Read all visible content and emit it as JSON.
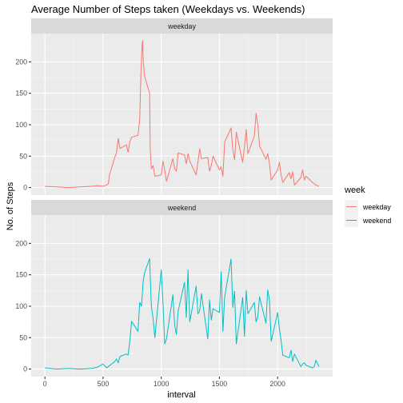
{
  "chart_data": {
    "type": "line",
    "title": "Average Number of Steps taken (Weekdays vs. Weekends)",
    "xlabel": "interval",
    "ylabel": "No. of Steps",
    "xlim": [
      -118,
      2473
    ],
    "ylim": [
      -12,
      245
    ],
    "x_ticks": [
      0,
      500,
      1000,
      1500,
      2000
    ],
    "y_ticks": [
      0,
      50,
      100,
      150,
      200
    ],
    "grid": true,
    "legend": {
      "title": "week",
      "placement": "right",
      "entries": [
        "weekday",
        "weekend"
      ]
    },
    "facets": [
      "weekday",
      "weekend"
    ],
    "series": [
      {
        "name": "weekday",
        "color": "#F8766D",
        "x": [
          0,
          100,
          200,
          300,
          400,
          450,
          500,
          530,
          545,
          555,
          600,
          615,
          630,
          645,
          700,
          715,
          730,
          745,
          800,
          815,
          825,
          830,
          835,
          840,
          845,
          850,
          855,
          900,
          905,
          915,
          930,
          945,
          1000,
          1015,
          1030,
          1045,
          1100,
          1115,
          1130,
          1145,
          1200,
          1215,
          1230,
          1245,
          1300,
          1315,
          1330,
          1345,
          1400,
          1415,
          1430,
          1445,
          1500,
          1515,
          1530,
          1545,
          1600,
          1615,
          1630,
          1645,
          1700,
          1715,
          1730,
          1745,
          1800,
          1815,
          1830,
          1845,
          1900,
          1915,
          1930,
          1945,
          2000,
          2015,
          2030,
          2045,
          2100,
          2115,
          2130,
          2145,
          2200,
          2215,
          2230,
          2245,
          2300,
          2315,
          2330,
          2355
        ],
        "values": [
          2,
          1,
          0,
          1,
          2,
          3,
          2,
          4,
          6,
          20,
          48,
          55,
          78,
          62,
          68,
          56,
          73,
          80,
          83,
          108,
          180,
          205,
          225,
          234,
          200,
          192,
          178,
          150,
          62,
          30,
          35,
          18,
          20,
          42,
          28,
          10,
          46,
          30,
          26,
          55,
          52,
          38,
          54,
          42,
          20,
          40,
          62,
          46,
          48,
          26,
          35,
          50,
          28,
          33,
          18,
          72,
          95,
          60,
          44,
          88,
          40,
          65,
          92,
          54,
          82,
          118,
          100,
          66,
          45,
          54,
          38,
          12,
          28,
          40,
          20,
          8,
          24,
          14,
          25,
          4,
          16,
          28,
          12,
          18,
          8,
          6,
          4,
          2
        ]
      },
      {
        "name": "weekend",
        "color": "#00BFC4",
        "x": [
          0,
          100,
          200,
          300,
          400,
          450,
          500,
          530,
          545,
          600,
          615,
          630,
          645,
          700,
          715,
          730,
          745,
          800,
          815,
          830,
          845,
          855,
          900,
          915,
          930,
          945,
          1000,
          1015,
          1030,
          1045,
          1100,
          1115,
          1130,
          1145,
          1200,
          1215,
          1230,
          1245,
          1300,
          1315,
          1330,
          1345,
          1400,
          1415,
          1430,
          1445,
          1500,
          1515,
          1530,
          1545,
          1600,
          1615,
          1630,
          1645,
          1700,
          1715,
          1730,
          1745,
          1800,
          1815,
          1830,
          1845,
          1900,
          1915,
          1930,
          1945,
          2000,
          2015,
          2030,
          2045,
          2100,
          2115,
          2130,
          2145,
          2200,
          2215,
          2230,
          2245,
          2300,
          2315,
          2330,
          2355
        ],
        "values": [
          2,
          0,
          1,
          0,
          1,
          3,
          8,
          2,
          4,
          12,
          16,
          10,
          20,
          24,
          22,
          45,
          76,
          60,
          106,
          100,
          140,
          152,
          176,
          100,
          80,
          50,
          158,
          105,
          40,
          48,
          118,
          70,
          55,
          92,
          138,
          82,
          158,
          75,
          132,
          88,
          92,
          120,
          48,
          110,
          78,
          96,
          90,
          155,
          60,
          115,
          175,
          98,
          124,
          40,
          114,
          52,
          125,
          88,
          106,
          75,
          84,
          115,
          73,
          126,
          110,
          44,
          90,
          65,
          45,
          22,
          18,
          30,
          12,
          24,
          4,
          8,
          10,
          6,
          2,
          4,
          14,
          4
        ]
      }
    ]
  }
}
